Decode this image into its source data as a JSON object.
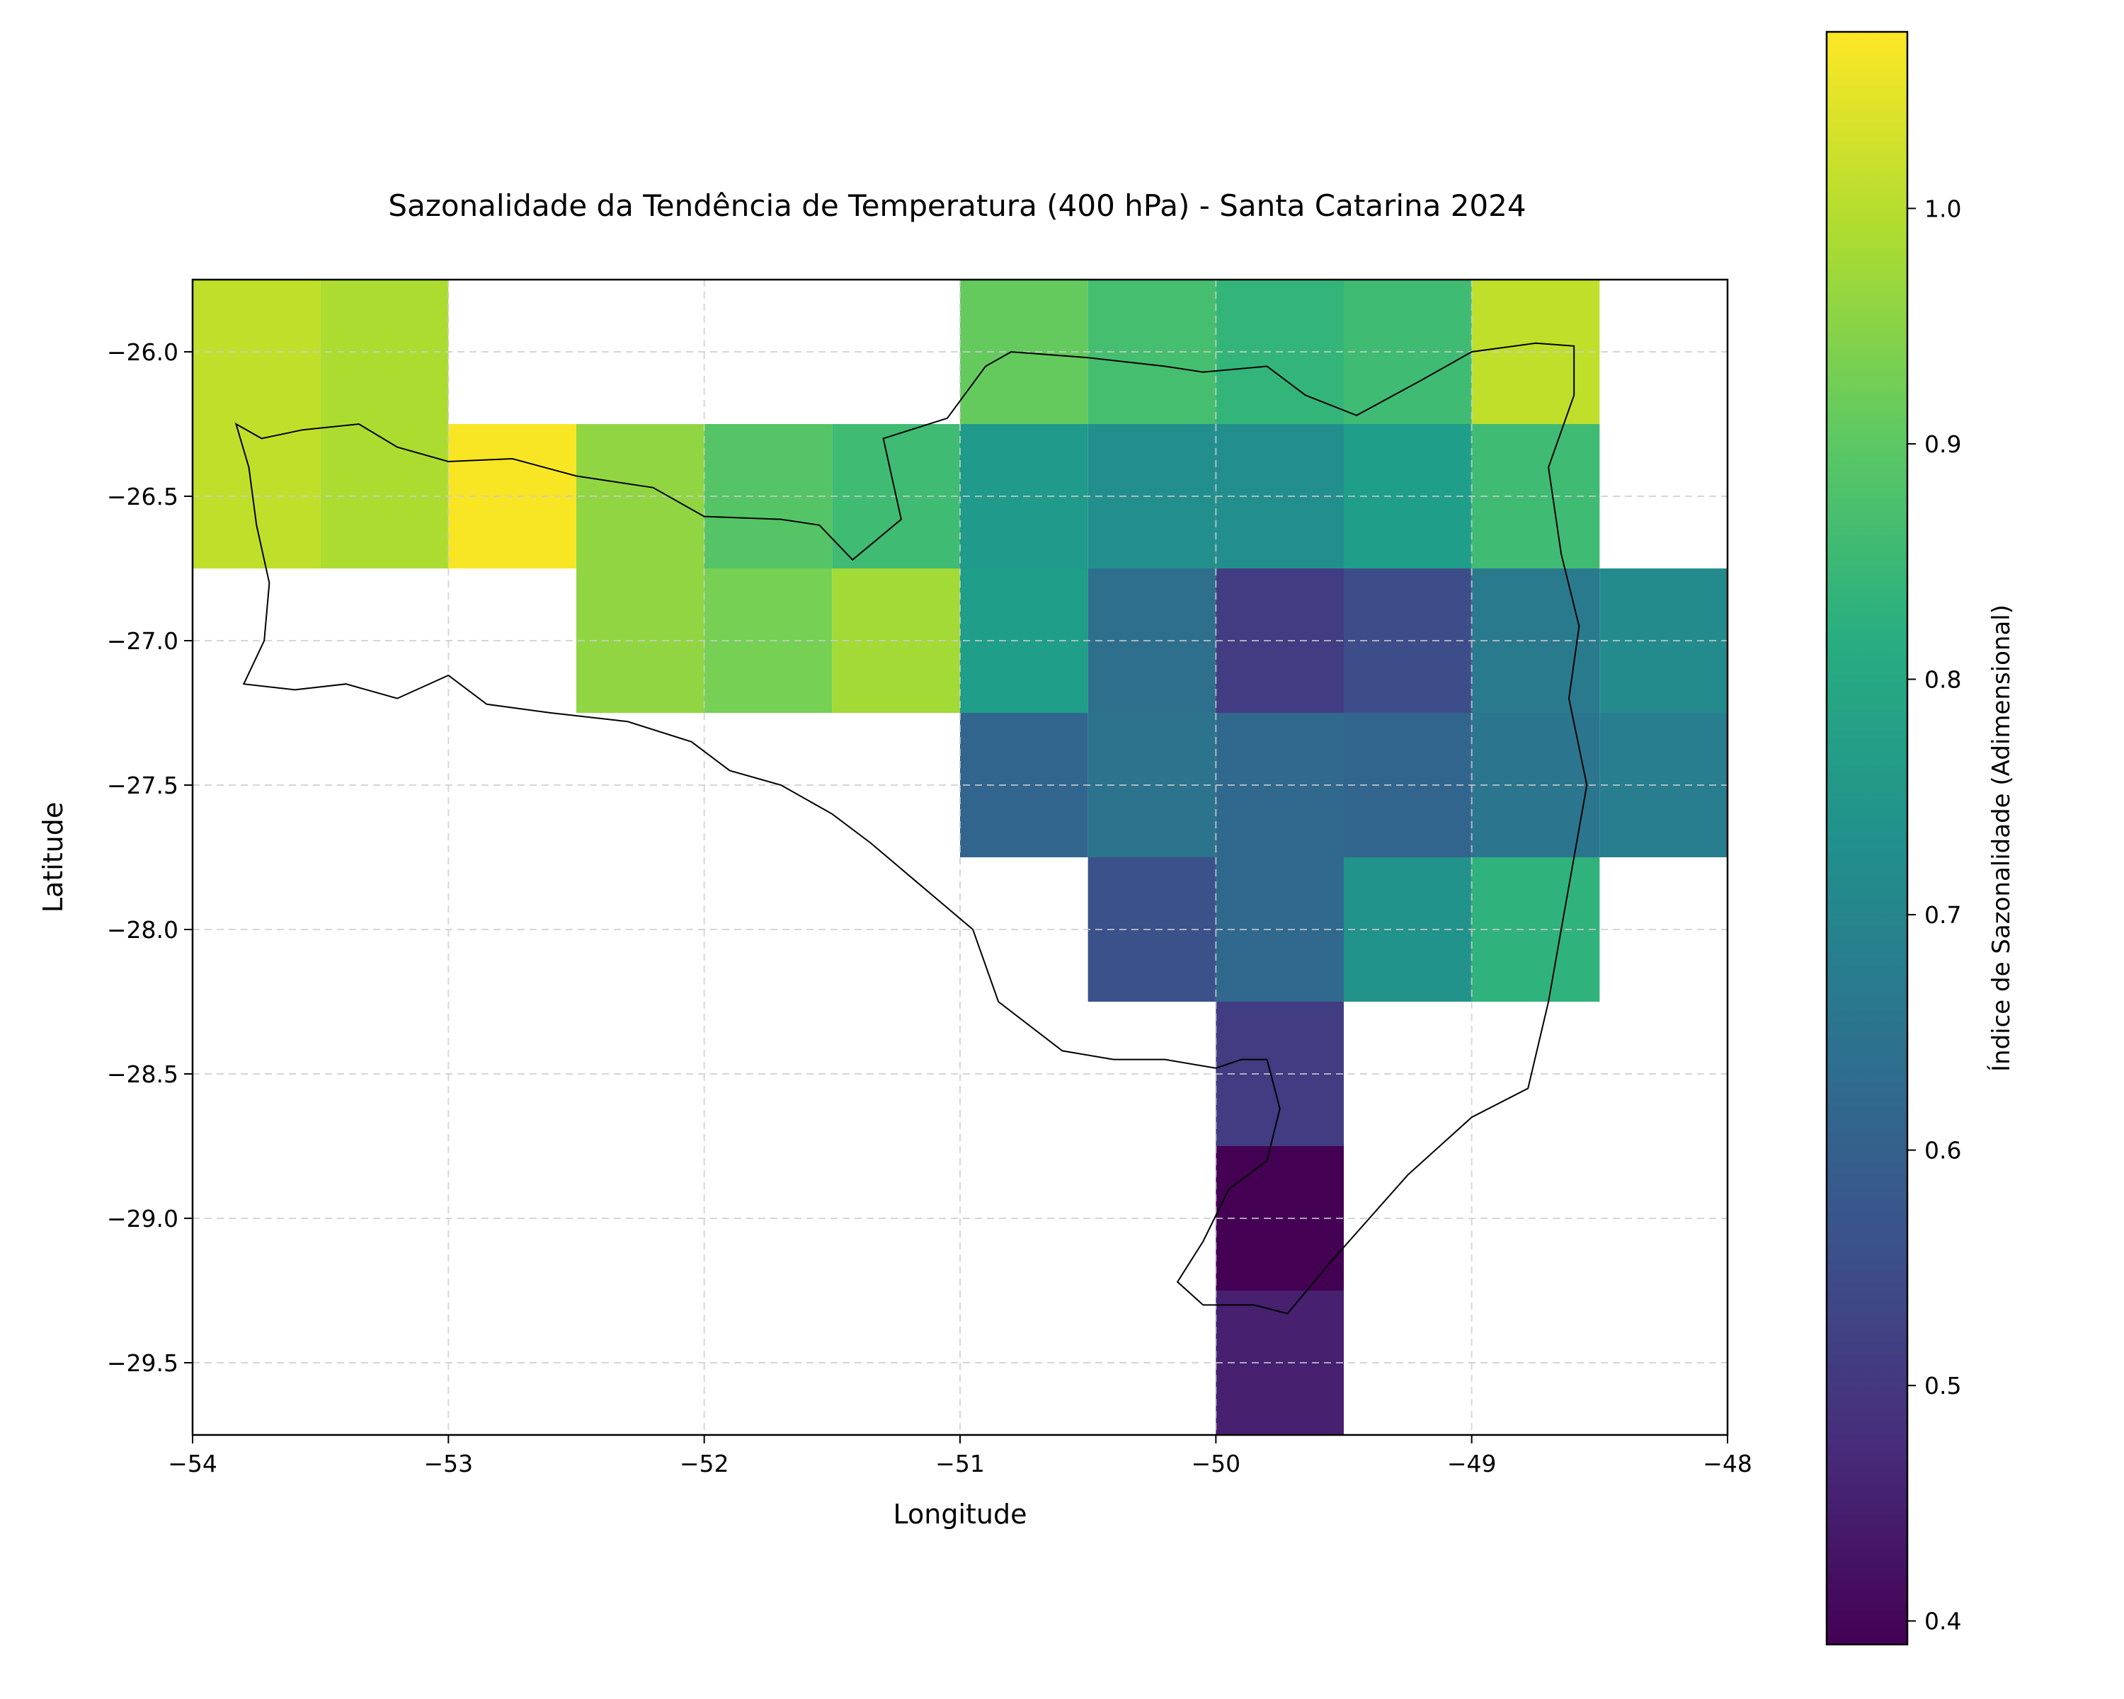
{
  "chart_data": {
    "type": "heatmap",
    "title": "Sazonalidade da Tendência de Temperatura (400 hPa) - Santa Catarina 2024",
    "xlabel": "Longitude",
    "ylabel": "Latitude",
    "xlim": [
      -54,
      -48
    ],
    "ylim": [
      -29.75,
      -25.75
    ],
    "xticks": [
      -54,
      -53,
      -52,
      -51,
      -50,
      -49,
      -48
    ],
    "xtick_labels": [
      "−54",
      "−53",
      "−52",
      "−51",
      "−50",
      "−49",
      "−48"
    ],
    "yticks": [
      -26.0,
      -26.5,
      -27.0,
      -27.5,
      -28.0,
      -28.5,
      -29.0,
      -29.5
    ],
    "ytick_labels": [
      "−26.0",
      "−26.5",
      "−27.0",
      "−27.5",
      "−28.0",
      "−28.5",
      "−29.0",
      "−29.5"
    ],
    "grid": true,
    "cell_size_degrees": 0.5,
    "colormap": "viridis",
    "colorbar": {
      "label": "Índice de Sazonalidade (Adimensional)",
      "min": 0.39,
      "max": 1.075,
      "ticks": [
        0.4,
        0.5,
        0.6,
        0.7,
        0.8,
        0.9,
        1.0
      ],
      "tick_labels": [
        "0.4",
        "0.5",
        "0.6",
        "0.7",
        "0.8",
        "0.9",
        "1.0"
      ]
    },
    "cells": [
      {
        "lon": -53.75,
        "lat": -26.0,
        "value": 1.01
      },
      {
        "lon": -53.25,
        "lat": -26.0,
        "value": 0.99
      },
      {
        "lon": -50.75,
        "lat": -26.0,
        "value": 0.91
      },
      {
        "lon": -50.25,
        "lat": -26.0,
        "value": 0.87
      },
      {
        "lon": -49.75,
        "lat": -26.0,
        "value": 0.84
      },
      {
        "lon": -49.25,
        "lat": -26.0,
        "value": 0.86
      },
      {
        "lon": -48.75,
        "lat": -26.0,
        "value": 1.01
      },
      {
        "lon": -53.75,
        "lat": -26.5,
        "value": 1.01
      },
      {
        "lon": -53.25,
        "lat": -26.5,
        "value": 0.99
      },
      {
        "lon": -52.75,
        "lat": -26.5,
        "value": 1.07
      },
      {
        "lon": -52.25,
        "lat": -26.5,
        "value": 0.96
      },
      {
        "lon": -51.75,
        "lat": -26.5,
        "value": 0.89
      },
      {
        "lon": -51.25,
        "lat": -26.5,
        "value": 0.86
      },
      {
        "lon": -50.75,
        "lat": -26.5,
        "value": 0.76
      },
      {
        "lon": -50.25,
        "lat": -26.5,
        "value": 0.73
      },
      {
        "lon": -49.75,
        "lat": -26.5,
        "value": 0.73
      },
      {
        "lon": -49.25,
        "lat": -26.5,
        "value": 0.77
      },
      {
        "lon": -48.75,
        "lat": -26.5,
        "value": 0.86
      },
      {
        "lon": -52.25,
        "lat": -27.0,
        "value": 0.96
      },
      {
        "lon": -51.75,
        "lat": -27.0,
        "value": 0.93
      },
      {
        "lon": -51.25,
        "lat": -27.0,
        "value": 0.98
      },
      {
        "lon": -50.75,
        "lat": -27.0,
        "value": 0.77
      },
      {
        "lon": -50.25,
        "lat": -27.0,
        "value": 0.64
      },
      {
        "lon": -49.75,
        "lat": -27.0,
        "value": 0.51
      },
      {
        "lon": -49.25,
        "lat": -27.0,
        "value": 0.55
      },
      {
        "lon": -48.75,
        "lat": -27.0,
        "value": 0.67
      },
      {
        "lon": -48.25,
        "lat": -27.0,
        "value": 0.72
      },
      {
        "lon": -50.75,
        "lat": -27.5,
        "value": 0.61
      },
      {
        "lon": -50.25,
        "lat": -27.5,
        "value": 0.65
      },
      {
        "lon": -49.75,
        "lat": -27.5,
        "value": 0.62
      },
      {
        "lon": -49.25,
        "lat": -27.5,
        "value": 0.61
      },
      {
        "lon": -48.75,
        "lat": -27.5,
        "value": 0.66
      },
      {
        "lon": -48.25,
        "lat": -27.5,
        "value": 0.68
      },
      {
        "lon": -50.25,
        "lat": -28.0,
        "value": 0.56
      },
      {
        "lon": -49.75,
        "lat": -28.0,
        "value": 0.62
      },
      {
        "lon": -49.25,
        "lat": -28.0,
        "value": 0.74
      },
      {
        "lon": -48.75,
        "lat": -28.0,
        "value": 0.83
      },
      {
        "lon": -49.75,
        "lat": -28.5,
        "value": 0.51
      },
      {
        "lon": -49.75,
        "lat": -29.0,
        "value": 0.39
      },
      {
        "lon": -49.75,
        "lat": -29.5,
        "value": 0.45
      }
    ],
    "boundary_outline": [
      [
        -53.83,
        -26.25
      ],
      [
        -53.73,
        -26.3
      ],
      [
        -53.57,
        -26.27
      ],
      [
        -53.35,
        -26.25
      ],
      [
        -53.2,
        -26.33
      ],
      [
        -53.0,
        -26.38
      ],
      [
        -52.75,
        -26.37
      ],
      [
        -52.5,
        -26.43
      ],
      [
        -52.2,
        -26.47
      ],
      [
        -52.0,
        -26.57
      ],
      [
        -51.7,
        -26.58
      ],
      [
        -51.55,
        -26.6
      ],
      [
        -51.42,
        -26.72
      ],
      [
        -51.23,
        -26.58
      ],
      [
        -51.3,
        -26.3
      ],
      [
        -51.05,
        -26.23
      ],
      [
        -50.9,
        -26.05
      ],
      [
        -50.8,
        -26.0
      ],
      [
        -50.5,
        -26.02
      ],
      [
        -50.2,
        -26.05
      ],
      [
        -50.05,
        -26.07
      ],
      [
        -49.8,
        -26.05
      ],
      [
        -49.65,
        -26.15
      ],
      [
        -49.45,
        -26.22
      ],
      [
        -49.2,
        -26.1
      ],
      [
        -49.0,
        -26.0
      ],
      [
        -48.75,
        -25.97
      ],
      [
        -48.6,
        -25.98
      ],
      [
        -48.6,
        -26.15
      ],
      [
        -48.7,
        -26.4
      ],
      [
        -48.65,
        -26.7
      ],
      [
        -48.58,
        -26.95
      ],
      [
        -48.62,
        -27.2
      ],
      [
        -48.55,
        -27.5
      ],
      [
        -48.6,
        -27.75
      ],
      [
        -48.65,
        -28.0
      ],
      [
        -48.7,
        -28.25
      ],
      [
        -48.78,
        -28.55
      ],
      [
        -49.0,
        -28.65
      ],
      [
        -49.25,
        -28.85
      ],
      [
        -49.55,
        -29.15
      ],
      [
        -49.72,
        -29.33
      ],
      [
        -49.85,
        -29.3
      ],
      [
        -50.05,
        -29.3
      ],
      [
        -50.15,
        -29.22
      ],
      [
        -50.05,
        -29.08
      ],
      [
        -49.95,
        -28.9
      ],
      [
        -49.8,
        -28.8
      ],
      [
        -49.75,
        -28.62
      ],
      [
        -49.8,
        -28.45
      ],
      [
        -49.9,
        -28.45
      ],
      [
        -50.0,
        -28.48
      ],
      [
        -50.2,
        -28.45
      ],
      [
        -50.4,
        -28.45
      ],
      [
        -50.6,
        -28.42
      ],
      [
        -50.85,
        -28.25
      ],
      [
        -50.95,
        -28.0
      ],
      [
        -51.15,
        -27.85
      ],
      [
        -51.35,
        -27.7
      ],
      [
        -51.5,
        -27.6
      ],
      [
        -51.7,
        -27.5
      ],
      [
        -51.9,
        -27.45
      ],
      [
        -52.05,
        -27.35
      ],
      [
        -52.3,
        -27.28
      ],
      [
        -52.6,
        -27.25
      ],
      [
        -52.85,
        -27.22
      ],
      [
        -53.0,
        -27.12
      ],
      [
        -53.2,
        -27.2
      ],
      [
        -53.4,
        -27.15
      ],
      [
        -53.6,
        -27.17
      ],
      [
        -53.8,
        -27.15
      ],
      [
        -53.72,
        -27.0
      ],
      [
        -53.7,
        -26.8
      ],
      [
        -53.75,
        -26.6
      ],
      [
        -53.78,
        -26.4
      ],
      [
        -53.83,
        -26.25
      ]
    ]
  }
}
